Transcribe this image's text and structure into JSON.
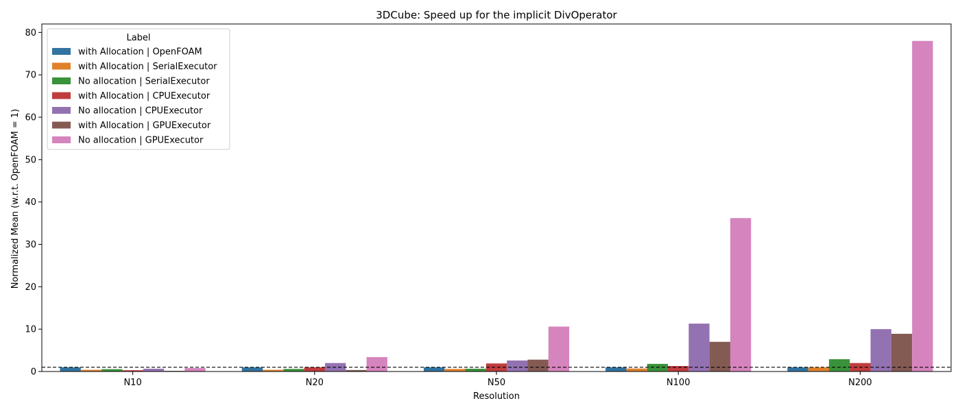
{
  "chart_data": {
    "type": "bar",
    "title": "3DCube: Speed up for the implicit DivOperator",
    "xlabel": "Resolution",
    "ylabel": "Normalized Mean (w.r.t. OpenFOAM = 1)",
    "categories": [
      "N10",
      "N20",
      "N50",
      "N100",
      "N200"
    ],
    "ylim": [
      0,
      82
    ],
    "yticks": [
      0,
      10,
      20,
      30,
      40,
      50,
      60,
      70,
      80
    ],
    "reference_line": 1,
    "legend": {
      "title": "Label",
      "placement": "top-left"
    },
    "series": [
      {
        "name": "with Allocation | OpenFOAM",
        "color": "#3274a1",
        "values": [
          1.0,
          1.0,
          1.0,
          1.0,
          1.0
        ]
      },
      {
        "name": "with Allocation | SerialExecutor",
        "color": "#e1812c",
        "values": [
          0.4,
          0.4,
          0.6,
          0.7,
          1.0
        ]
      },
      {
        "name": "No allocation | SerialExecutor",
        "color": "#3a923a",
        "values": [
          0.55,
          0.6,
          0.65,
          1.8,
          2.9
        ]
      },
      {
        "name": "with Allocation | CPUExecutor",
        "color": "#c03d3e",
        "values": [
          0.3,
          1.0,
          1.9,
          1.3,
          2.0
        ]
      },
      {
        "name": "No allocation | CPUExecutor",
        "color": "#9372b2",
        "values": [
          0.65,
          2.0,
          2.6,
          11.3,
          10.0
        ]
      },
      {
        "name": "with Allocation | GPUExecutor",
        "color": "#845b53",
        "values": [
          0.15,
          0.35,
          2.8,
          7.0,
          8.9
        ]
      },
      {
        "name": "No allocation | GPUExecutor",
        "color": "#d684bd",
        "values": [
          0.8,
          3.4,
          10.6,
          36.2,
          78.0
        ]
      }
    ]
  }
}
